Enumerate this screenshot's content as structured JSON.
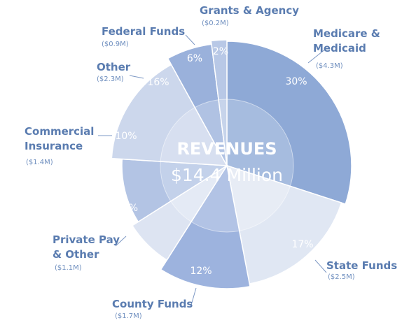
{
  "chart_data": {
    "type": "pie",
    "title": "REVENUES",
    "subtitle": "$14.4 Million",
    "categories": [
      "Medicare & Medicaid",
      "State Funds",
      "County Funds",
      "Private Pay & Other",
      "Commercial Insurance",
      "Other",
      "Federal Funds",
      "Grants & Agency"
    ],
    "values": [
      30,
      17,
      12,
      7,
      10,
      16,
      6,
      2
    ],
    "value_labels": [
      "30%",
      "17%",
      "12%",
      "7%",
      "10%",
      "16%",
      "6%",
      "2%"
    ],
    "amount_labels": [
      "($4.3M)",
      "($2.5M)",
      "($1.7M)",
      "($1.1M)",
      "($1.4M)",
      "($2.3M)",
      "($0.9M)",
      "($0.2M)"
    ],
    "colors": [
      "#8ea9d6",
      "#e0e7f3",
      "#9db3de",
      "#dde4f2",
      "#b3c4e4",
      "#ccd7ec",
      "#9ab1db",
      "#b8c8e6"
    ]
  }
}
